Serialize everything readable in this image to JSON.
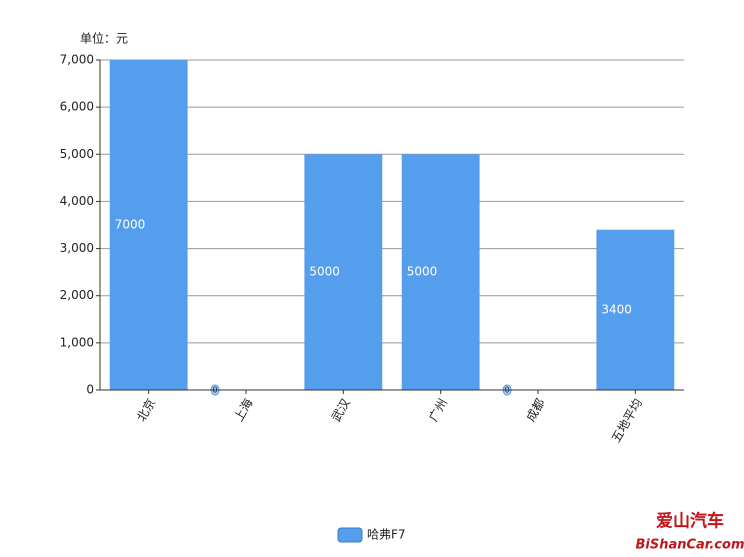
{
  "chart_data": {
    "type": "bar",
    "y_label": "单位：元",
    "categories": [
      "北京",
      "上海",
      "武汉",
      "广州",
      "成都",
      "五地平均"
    ],
    "series": [
      {
        "name": "哈弗F7",
        "color": "#559ded",
        "values": [
          7000,
          0,
          5000,
          5000,
          0,
          3400
        ]
      }
    ],
    "ylim": [
      0,
      7000
    ],
    "yticks": [
      0,
      {
        "value": 1000,
        "label": "1,000"
      },
      {
        "value": 2000,
        "label": "2,000"
      },
      {
        "value": 3000,
        "label": "3,000"
      },
      {
        "value": 4000,
        "label": "4,000"
      },
      {
        "value": 5000,
        "label": "5,000"
      },
      {
        "value": 6000,
        "label": "6,000"
      },
      {
        "value": 7000,
        "label": "7,000"
      }
    ],
    "grid": true,
    "legend": "bottom",
    "watermark": [
      "爱山汽车",
      "BiShanCar.com"
    ]
  }
}
